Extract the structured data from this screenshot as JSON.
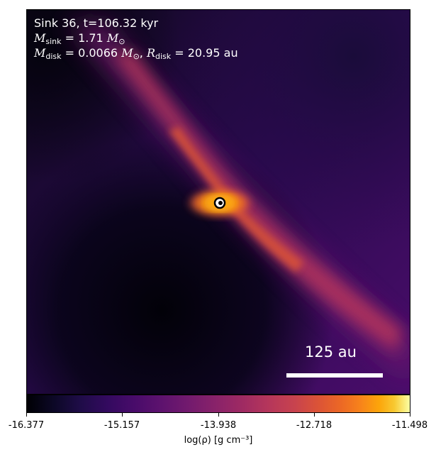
{
  "annotation": {
    "line1": "Sink 36, t=106.32 kyr",
    "msink_value": "1.71",
    "mdisk_value": "0.0066",
    "rdisk_value": "20.95",
    "unit_au": "au"
  },
  "scalebar": {
    "label": "125 au"
  },
  "colorbar": {
    "ticks": [
      "-16.377",
      "-15.157",
      "-13.938",
      "-12.718",
      "-11.498"
    ],
    "label": "log(ρ) [g cm⁻³]",
    "colormap": "inferno"
  },
  "colors": {
    "background_dark": "#0a0612",
    "filament": "#b5365b",
    "core": "#fca50a",
    "text": "#ffffff"
  }
}
